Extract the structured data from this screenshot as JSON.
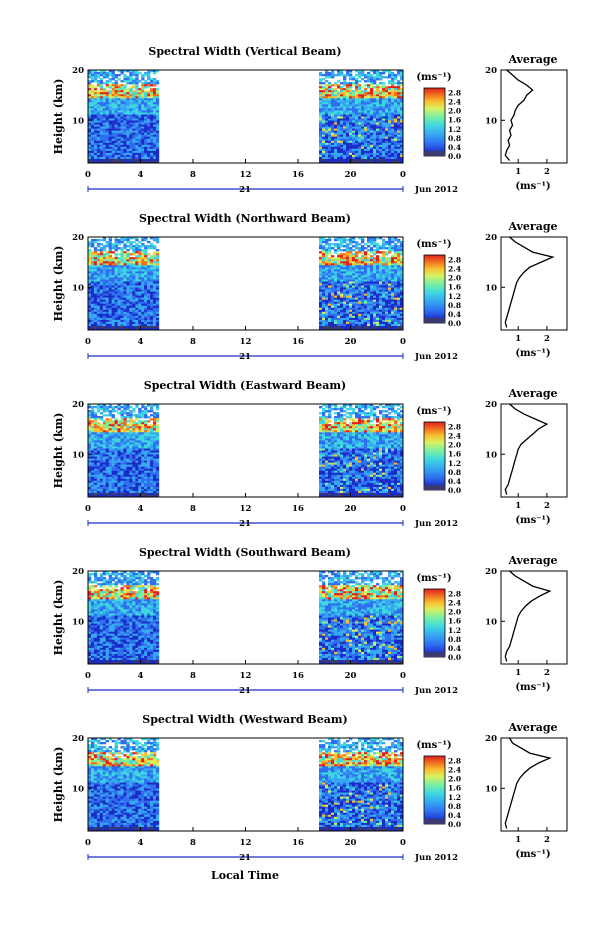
{
  "chart_data": [
    {
      "type": "heatmap",
      "title": "Spectral Width (Vertical Beam)",
      "ylabel": "Height (km)",
      "y_ticks": [
        "20",
        "10"
      ],
      "ylim": [
        1.5,
        20
      ],
      "xlim": [
        0,
        24
      ],
      "x_ticks": [
        "0",
        "4",
        "8",
        "12",
        "16",
        "20",
        "0"
      ],
      "day_label": "21",
      "date_label": "Jun 2012",
      "data_coverage_hours": [
        [
          0,
          5.4
        ],
        [
          17.6,
          24
        ]
      ],
      "colorbar": {
        "unit": "(ms⁻¹)",
        "ticks": [
          "0.0",
          "0.4",
          "0.8",
          "1.2",
          "1.6",
          "2.0",
          "2.4",
          "2.8"
        ],
        "range": [
          0,
          3.0
        ]
      },
      "average_profile": {
        "title": "Average",
        "x_ticks": [
          "1",
          "2"
        ],
        "xlim": [
          0.4,
          2.7
        ],
        "xlabel": "(ms⁻¹)",
        "y_ticks": [
          "20",
          "10"
        ],
        "height_km": [
          2,
          3,
          4,
          5,
          6,
          7,
          8,
          9,
          10,
          11,
          12,
          13,
          14,
          15,
          16,
          17,
          18,
          19,
          20
        ],
        "value": [
          0.7,
          0.55,
          0.6,
          0.7,
          0.65,
          0.75,
          0.7,
          0.8,
          0.75,
          0.85,
          0.9,
          1.0,
          1.2,
          1.3,
          1.5,
          1.3,
          1.0,
          0.8,
          0.6
        ]
      }
    },
    {
      "type": "heatmap",
      "title": "Spectral Width (Northward Beam)",
      "ylabel": "Height (km)",
      "y_ticks": [
        "20",
        "10"
      ],
      "ylim": [
        1.5,
        20
      ],
      "xlim": [
        0,
        24
      ],
      "x_ticks": [
        "0",
        "4",
        "8",
        "12",
        "16",
        "20",
        "0"
      ],
      "day_label": "21",
      "date_label": "Jun 2012",
      "data_coverage_hours": [
        [
          0,
          5.4
        ],
        [
          17.6,
          24
        ]
      ],
      "colorbar": {
        "unit": "(ms⁻¹)",
        "ticks": [
          "0.0",
          "0.4",
          "0.8",
          "1.2",
          "1.6",
          "2.0",
          "2.4",
          "2.8"
        ],
        "range": [
          0,
          3.0
        ]
      },
      "average_profile": {
        "title": "Average",
        "x_ticks": [
          "1",
          "2"
        ],
        "xlim": [
          0.4,
          2.7
        ],
        "xlabel": "(ms⁻¹)",
        "y_ticks": [
          "20",
          "10"
        ],
        "height_km": [
          2,
          3,
          4,
          5,
          6,
          7,
          8,
          9,
          10,
          11,
          12,
          13,
          14,
          15,
          16,
          17,
          18,
          19,
          20
        ],
        "value": [
          0.6,
          0.55,
          0.6,
          0.65,
          0.7,
          0.75,
          0.8,
          0.85,
          0.9,
          0.95,
          1.05,
          1.2,
          1.4,
          1.8,
          2.2,
          1.5,
          1.2,
          0.9,
          0.7
        ]
      }
    },
    {
      "type": "heatmap",
      "title": "Spectral Width (Eastward Beam)",
      "ylabel": "Height (km)",
      "y_ticks": [
        "20",
        "10"
      ],
      "ylim": [
        1.5,
        20
      ],
      "xlim": [
        0,
        24
      ],
      "x_ticks": [
        "0",
        "4",
        "8",
        "12",
        "16",
        "20",
        "0"
      ],
      "day_label": "21",
      "date_label": "Jun 2012",
      "data_coverage_hours": [
        [
          0,
          5.4
        ],
        [
          17.6,
          24
        ]
      ],
      "colorbar": {
        "unit": "(ms⁻¹)",
        "ticks": [
          "0.0",
          "0.4",
          "0.8",
          "1.2",
          "1.6",
          "2.0",
          "2.4",
          "2.8"
        ],
        "range": [
          0,
          3.0
        ]
      },
      "average_profile": {
        "title": "Average",
        "x_ticks": [
          "1",
          "2"
        ],
        "xlim": [
          0.4,
          2.7
        ],
        "xlabel": "(ms⁻¹)",
        "y_ticks": [
          "20",
          "10"
        ],
        "height_km": [
          2,
          3,
          4,
          5,
          6,
          7,
          8,
          9,
          10,
          11,
          12,
          13,
          14,
          15,
          16,
          17,
          18,
          19,
          20
        ],
        "value": [
          0.6,
          0.55,
          0.65,
          0.7,
          0.75,
          0.8,
          0.85,
          0.9,
          0.95,
          1.0,
          1.1,
          1.3,
          1.5,
          1.7,
          2.0,
          1.6,
          1.2,
          0.9,
          0.7
        ]
      }
    },
    {
      "type": "heatmap",
      "title": "Spectral Width (Southward Beam)",
      "ylabel": "Height (km)",
      "y_ticks": [
        "20",
        "10"
      ],
      "ylim": [
        1.5,
        20
      ],
      "xlim": [
        0,
        24
      ],
      "x_ticks": [
        "0",
        "4",
        "8",
        "12",
        "16",
        "20",
        "0"
      ],
      "day_label": "21",
      "date_label": "Jun 2012",
      "data_coverage_hours": [
        [
          0,
          5.4
        ],
        [
          17.6,
          24
        ]
      ],
      "colorbar": {
        "unit": "(ms⁻¹)",
        "ticks": [
          "0.0",
          "0.4",
          "0.8",
          "1.2",
          "1.6",
          "2.0",
          "2.4",
          "2.8"
        ],
        "range": [
          0,
          3.0
        ]
      },
      "average_profile": {
        "title": "Average",
        "x_ticks": [
          "1",
          "2"
        ],
        "xlim": [
          0.4,
          2.7
        ],
        "xlabel": "(ms⁻¹)",
        "y_ticks": [
          "20",
          "10"
        ],
        "height_km": [
          2,
          3,
          4,
          5,
          6,
          7,
          8,
          9,
          10,
          11,
          12,
          13,
          14,
          15,
          16,
          17,
          18,
          19,
          20
        ],
        "value": [
          0.6,
          0.55,
          0.6,
          0.7,
          0.75,
          0.8,
          0.85,
          0.9,
          0.95,
          1.0,
          1.1,
          1.25,
          1.45,
          1.75,
          2.1,
          1.5,
          1.2,
          0.9,
          0.7
        ]
      }
    },
    {
      "type": "heatmap",
      "title": "Spectral Width (Westward Beam)",
      "ylabel": "Height (km)",
      "y_ticks": [
        "20",
        "10"
      ],
      "ylim": [
        1.5,
        20
      ],
      "xlim": [
        0,
        24
      ],
      "x_ticks": [
        "0",
        "4",
        "8",
        "12",
        "16",
        "20",
        "0"
      ],
      "day_label": "21",
      "date_label": "Jun 2012",
      "xlabel": "Local Time",
      "data_coverage_hours": [
        [
          0,
          5.4
        ],
        [
          17.6,
          24
        ]
      ],
      "colorbar": {
        "unit": "(ms⁻¹)",
        "ticks": [
          "0.0",
          "0.4",
          "0.8",
          "1.2",
          "1.6",
          "2.0",
          "2.4",
          "2.8"
        ],
        "range": [
          0,
          3.0
        ]
      },
      "average_profile": {
        "title": "Average",
        "x_ticks": [
          "1",
          "2"
        ],
        "xlim": [
          0.4,
          2.7
        ],
        "xlabel": "(ms⁻¹)",
        "y_ticks": [
          "20",
          "10"
        ],
        "height_km": [
          2,
          3,
          4,
          5,
          6,
          7,
          8,
          9,
          10,
          11,
          12,
          13,
          14,
          15,
          16,
          17,
          18,
          19,
          20
        ],
        "value": [
          0.6,
          0.55,
          0.6,
          0.65,
          0.7,
          0.75,
          0.8,
          0.85,
          0.9,
          0.95,
          1.05,
          1.2,
          1.4,
          1.7,
          2.1,
          1.4,
          1.1,
          0.8,
          0.7
        ]
      }
    }
  ],
  "colors": {
    "scale": [
      "#3a3a6e",
      "#1a2cc8",
      "#2f6ef0",
      "#36a8f2",
      "#3fd8e0",
      "#7cf0a0",
      "#d8f060",
      "#f8c030",
      "#f07020",
      "#e02020"
    ],
    "lowest": "#3a3a6e",
    "line": "#000000"
  }
}
